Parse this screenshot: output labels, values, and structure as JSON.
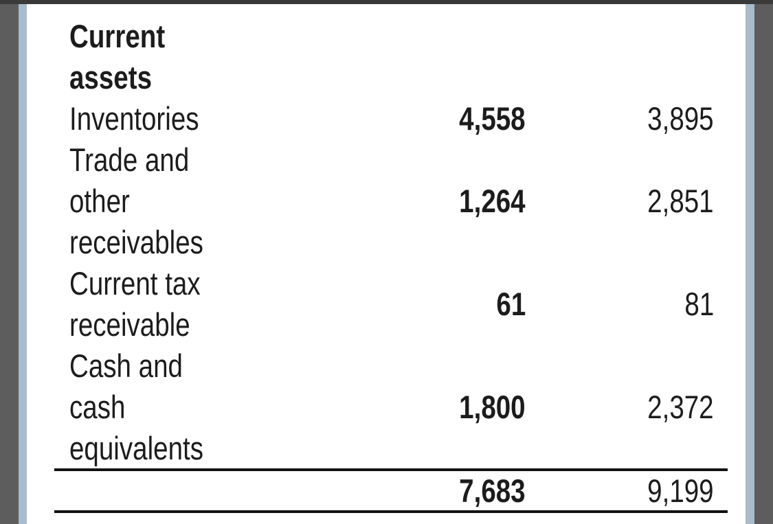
{
  "section": {
    "heading_line1": "Current",
    "heading_line2": "assets"
  },
  "rows": [
    {
      "label_lines": [
        "Inventories"
      ],
      "current": "4,558",
      "prior": "3,895"
    },
    {
      "label_lines": [
        "Trade and",
        "other",
        "receivables"
      ],
      "current": "1,264",
      "prior": "2,851"
    },
    {
      "label_lines": [
        "Current tax",
        "receivable"
      ],
      "current": "61",
      "prior": "81"
    },
    {
      "label_lines": [
        "Cash and",
        "cash",
        "equivalents"
      ],
      "current": "1,800",
      "prior": "2,372"
    }
  ],
  "total": {
    "current": "7,683",
    "prior": "9,199"
  }
}
